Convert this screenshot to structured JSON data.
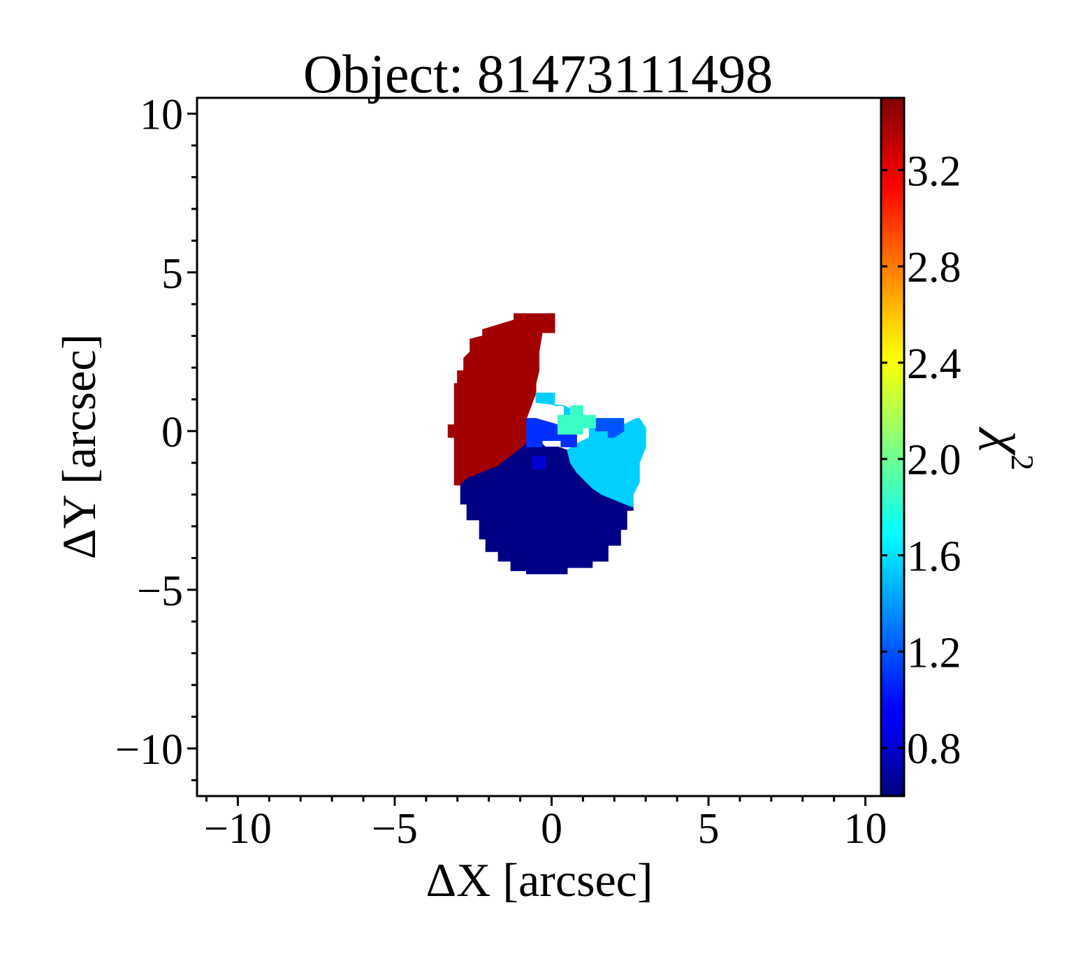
{
  "chart_data": {
    "type": "heatmap",
    "title": "Object: 81473111498",
    "xlabel": "ΔX [arcsec]",
    "ylabel": "ΔY [arcsec]",
    "colorbar_label": "χ²",
    "xlim": [
      -11.3,
      10.5
    ],
    "ylim": [
      -11.5,
      10.5
    ],
    "xticks": [
      -10,
      -5,
      0,
      5,
      10
    ],
    "xtick_labels": [
      "−10",
      "−5",
      "0",
      "5",
      "10"
    ],
    "yticks": [
      -10,
      -5,
      0,
      5,
      10
    ],
    "ytick_labels": [
      "−10",
      "−5",
      "0",
      "5",
      "10"
    ],
    "colorbar_range": [
      0.6,
      3.5
    ],
    "colorbar_ticks": [
      0.8,
      1.2,
      1.6,
      2.0,
      2.4,
      2.8,
      3.2
    ],
    "colorbar_tick_labels": [
      "0.8",
      "1.2",
      "1.6",
      "2.0",
      "2.4",
      "2.8",
      "3.2"
    ],
    "colormap": "jet",
    "pixel_size": 0.5,
    "grid": false,
    "regions": [
      {
        "name": "upper-left",
        "chi2": 3.4,
        "polygon": [
          [
            -3.3,
            0.2
          ],
          [
            -3.3,
            -0.2
          ],
          [
            -3.1,
            -0.2
          ],
          [
            -3.1,
            -1.7
          ],
          [
            -2.7,
            -1.7
          ],
          [
            -2.7,
            -1.5
          ],
          [
            -1.7,
            -1.2
          ],
          [
            -0.8,
            -0.5
          ],
          [
            -0.8,
            0.4
          ],
          [
            -0.5,
            1.2
          ],
          [
            -0.5,
            1.5
          ],
          [
            -0.4,
            1.9
          ],
          [
            -0.4,
            2.5
          ],
          [
            -0.3,
            3.1
          ],
          [
            0.1,
            3.1
          ],
          [
            0.1,
            3.7
          ],
          [
            -1.2,
            3.7
          ],
          [
            -1.2,
            3.5
          ],
          [
            -2.2,
            3.2
          ],
          [
            -2.2,
            3.0
          ],
          [
            -2.6,
            2.9
          ],
          [
            -2.6,
            2.5
          ],
          [
            -2.8,
            2.3
          ],
          [
            -2.8,
            1.9
          ],
          [
            -3.0,
            1.9
          ],
          [
            -3.0,
            1.5
          ],
          [
            -3.1,
            1.5
          ],
          [
            -3.1,
            0.2
          ]
        ]
      },
      {
        "name": "lower",
        "chi2": 0.62,
        "polygon": [
          [
            -2.9,
            -1.7
          ],
          [
            -2.9,
            -2.3
          ],
          [
            -2.7,
            -2.3
          ],
          [
            -2.7,
            -2.8
          ],
          [
            -2.3,
            -2.8
          ],
          [
            -2.3,
            -3.4
          ],
          [
            -2.1,
            -3.4
          ],
          [
            -2.1,
            -3.8
          ],
          [
            -1.7,
            -3.8
          ],
          [
            -1.7,
            -4.1
          ],
          [
            -1.3,
            -4.1
          ],
          [
            -1.3,
            -4.4
          ],
          [
            -0.8,
            -4.4
          ],
          [
            -0.8,
            -4.5
          ],
          [
            0.5,
            -4.5
          ],
          [
            0.5,
            -4.3
          ],
          [
            1.3,
            -4.3
          ],
          [
            1.3,
            -4.1
          ],
          [
            1.8,
            -4.1
          ],
          [
            1.8,
            -3.6
          ],
          [
            2.2,
            -3.6
          ],
          [
            2.2,
            -3.1
          ],
          [
            2.4,
            -3.1
          ],
          [
            2.4,
            -2.5
          ],
          [
            2.6,
            -2.5
          ],
          [
            2.6,
            -2.3
          ],
          [
            1.6,
            -2.0
          ],
          [
            1.3,
            -1.8
          ],
          [
            0.8,
            -1.3
          ],
          [
            0.6,
            -1.0
          ],
          [
            0.5,
            -0.6
          ],
          [
            0.2,
            -0.5
          ],
          [
            -0.2,
            -0.5
          ],
          [
            -0.4,
            -0.3
          ],
          [
            -0.8,
            -0.4
          ],
          [
            -1.7,
            -1.1
          ],
          [
            -2.7,
            -1.5
          ]
        ]
      },
      {
        "name": "right-lobe",
        "chi2": 1.55,
        "polygon": [
          [
            -0.5,
            1.2
          ],
          [
            0.1,
            1.2
          ],
          [
            0.1,
            0.8
          ],
          [
            0.4,
            0.8
          ],
          [
            0.4,
            0.4
          ],
          [
            0.8,
            0.4
          ],
          [
            1.2,
            0.3
          ],
          [
            1.2,
            -0.2
          ],
          [
            0.8,
            -0.4
          ],
          [
            0.5,
            -0.6
          ],
          [
            0.6,
            -1.0
          ],
          [
            0.8,
            -1.3
          ],
          [
            1.3,
            -1.8
          ],
          [
            1.6,
            -2.0
          ],
          [
            2.6,
            -2.4
          ],
          [
            2.6,
            -2.0
          ],
          [
            2.8,
            -1.6
          ],
          [
            2.8,
            -1.0
          ],
          [
            3.0,
            -0.5
          ],
          [
            3.0,
            0.1
          ],
          [
            2.8,
            0.4
          ],
          [
            2.7,
            0.4
          ],
          [
            2.3,
            0.2
          ],
          [
            2.0,
            -0.2
          ],
          [
            1.5,
            0.2
          ],
          [
            1.3,
            0.3
          ],
          [
            0.8,
            0.6
          ],
          [
            0.4,
            0.8
          ],
          [
            -0.5,
            0.9
          ]
        ]
      },
      {
        "name": "center-blue-patch",
        "chi2": 1.1,
        "polygon": [
          [
            -0.8,
            0.4
          ],
          [
            -0.8,
            -0.5
          ],
          [
            -0.3,
            -0.5
          ],
          [
            -0.3,
            -0.3
          ],
          [
            0.3,
            -0.3
          ],
          [
            0.3,
            -0.5
          ],
          [
            0.8,
            -0.5
          ],
          [
            0.8,
            -0.1
          ],
          [
            0.2,
            -0.1
          ],
          [
            0.2,
            0.2
          ],
          [
            -0.5,
            0.4
          ]
        ]
      },
      {
        "name": "right-blue-patch",
        "chi2": 1.2,
        "polygon": [
          [
            1.4,
            0.4
          ],
          [
            2.3,
            0.4
          ],
          [
            2.3,
            0.0
          ],
          [
            2.0,
            -0.2
          ],
          [
            1.8,
            -0.2
          ],
          [
            1.8,
            0.0
          ],
          [
            1.4,
            0.0
          ]
        ]
      },
      {
        "name": "center-cyan-patch",
        "chi2": 1.85,
        "polygon": [
          [
            0.2,
            0.5
          ],
          [
            0.6,
            0.5
          ],
          [
            0.6,
            0.8
          ],
          [
            1.0,
            0.8
          ],
          [
            1.0,
            0.5
          ],
          [
            1.4,
            0.5
          ],
          [
            1.4,
            0.1
          ],
          [
            1.0,
            0.1
          ],
          [
            1.0,
            -0.1
          ],
          [
            0.2,
            -0.1
          ]
        ]
      },
      {
        "name": "small-blue-pixel",
        "chi2": 0.85,
        "polygon": [
          [
            -0.6,
            -0.8
          ],
          [
            -0.2,
            -0.8
          ],
          [
            -0.2,
            -1.2
          ],
          [
            -0.6,
            -1.2
          ]
        ]
      }
    ]
  }
}
